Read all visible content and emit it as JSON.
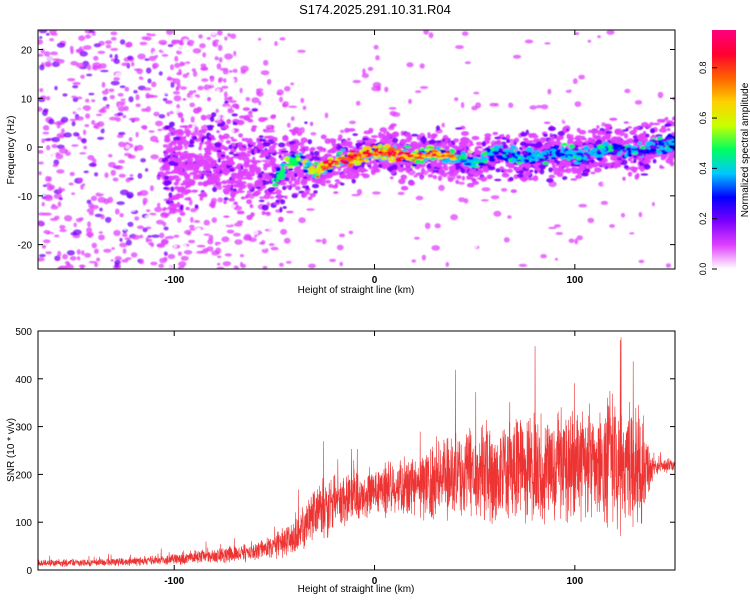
{
  "title": "S174.2025.291.10.31.R04",
  "chart_data": [
    {
      "type": "heatmap",
      "xlabel": "Height of straight line (km)",
      "ylabel": "Frequency (Hz)",
      "xlim": [
        -168,
        150
      ],
      "ylim": [
        -25,
        24
      ],
      "xticks": [
        -100,
        0,
        100
      ],
      "yticks": [
        -20,
        -10,
        0,
        10,
        20
      ],
      "grid": false,
      "ridge": {
        "x": [
          -50,
          -40,
          -30,
          -20,
          -10,
          0,
          10,
          20,
          30,
          40,
          50,
          60,
          70,
          80,
          90,
          100,
          110,
          120,
          130,
          140,
          150
        ],
        "frequency": [
          -7,
          -2,
          -5,
          -3,
          -2,
          -1,
          -1.5,
          -2,
          -1.5,
          -2,
          -3,
          -1,
          -2,
          -2,
          -1,
          -2,
          -1,
          0,
          -1,
          0,
          1
        ]
      },
      "colorbar": {
        "label": "Normalized spectral amplitude",
        "ticks": [
          0.0,
          0.2,
          0.4,
          0.6,
          0.8
        ],
        "tick_labels": [
          "0.0",
          "0.2",
          "0.4",
          "0.6",
          "0.8"
        ],
        "range": [
          0,
          0.95
        ],
        "colors": [
          "#ffffff",
          "#e040ff",
          "#7a00ff",
          "#0000ff",
          "#00c8ff",
          "#00ff60",
          "#c8ff00",
          "#ffd000",
          "#ff6000",
          "#ff0030",
          "#ff0080"
        ]
      }
    },
    {
      "type": "line",
      "xlabel": "Height of straight line (km)",
      "ylabel": "SNR (10 * v/v)",
      "xlim": [
        -168,
        150
      ],
      "ylim": [
        0,
        500
      ],
      "xticks": [
        -100,
        0,
        100
      ],
      "yticks": [
        0,
        100,
        200,
        300,
        400,
        500
      ],
      "grid": false,
      "color": "#ee3333",
      "envelope": {
        "x": [
          -168,
          -140,
          -120,
          -100,
          -80,
          -60,
          -50,
          -40,
          -30,
          -20,
          -10,
          0,
          10,
          20,
          30,
          40,
          50,
          60,
          70,
          80,
          90,
          100,
          110,
          120,
          130,
          135,
          140,
          150
        ],
        "mean": [
          15,
          15,
          18,
          22,
          30,
          38,
          48,
          70,
          110,
          140,
          155,
          165,
          170,
          175,
          185,
          200,
          205,
          205,
          210,
          215,
          215,
          220,
          225,
          220,
          215,
          200,
          215,
          220
        ],
        "spread": [
          8,
          8,
          10,
          12,
          18,
          22,
          25,
          40,
          60,
          65,
          60,
          55,
          60,
          70,
          90,
          100,
          110,
          110,
          115,
          120,
          120,
          125,
          130,
          140,
          150,
          90,
          15,
          15
        ]
      }
    }
  ]
}
